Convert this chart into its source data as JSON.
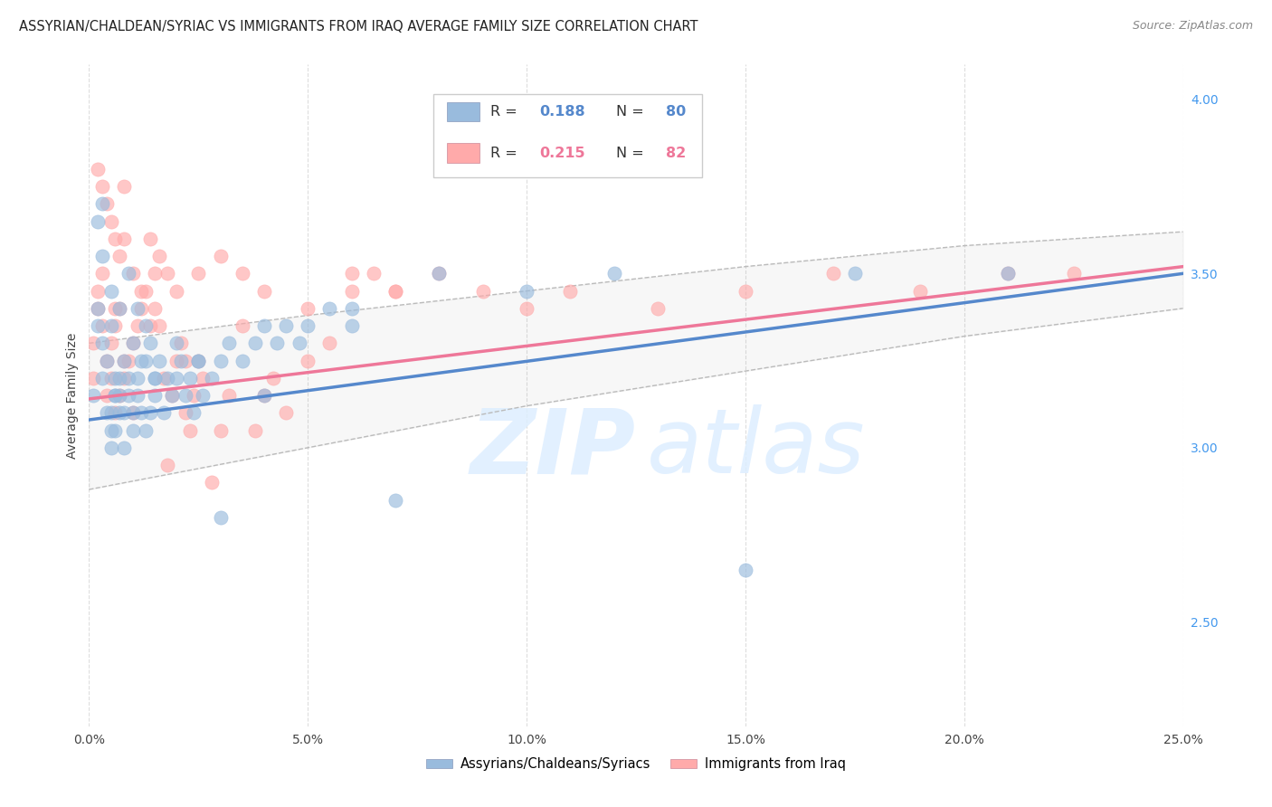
{
  "title": "ASSYRIAN/CHALDEAN/SYRIAC VS IMMIGRANTS FROM IRAQ AVERAGE FAMILY SIZE CORRELATION CHART",
  "source": "Source: ZipAtlas.com",
  "ylabel": "Average Family Size",
  "right_yticks": [
    2.5,
    3.0,
    3.5,
    4.0
  ],
  "right_yticklabels": [
    "2.50",
    "3.00",
    "3.50",
    "4.00"
  ],
  "blue_R": "0.188",
  "blue_N": "80",
  "pink_R": "0.215",
  "pink_N": "82",
  "blue_color": "#99BBDD",
  "pink_color": "#FFAAAA",
  "blue_line_color": "#5588CC",
  "pink_line_color": "#EE7799",
  "blue_label": "Assyrians/Chaldeans/Syriacs",
  "pink_label": "Immigrants from Iraq",
  "xlim": [
    0.0,
    0.25
  ],
  "ylim": [
    2.2,
    4.1
  ],
  "xticks": [
    0.0,
    0.05,
    0.1,
    0.15,
    0.2,
    0.25
  ],
  "xticklabels": [
    "0.0%",
    "5.0%",
    "10.0%",
    "15.0%",
    "20.0%",
    "25.0%"
  ],
  "grid_color": "#DDDDDD",
  "background_color": "#FFFFFF",
  "blue_line_x": [
    0.0,
    0.25
  ],
  "blue_line_y": [
    3.08,
    3.5
  ],
  "pink_line_x": [
    0.0,
    0.25
  ],
  "pink_line_y": [
    3.14,
    3.52
  ],
  "conf_x": [
    0.0,
    0.05,
    0.1,
    0.15,
    0.2,
    0.25
  ],
  "conf_upper": [
    3.3,
    3.38,
    3.45,
    3.52,
    3.58,
    3.62
  ],
  "conf_lower": [
    2.88,
    3.0,
    3.12,
    3.22,
    3.32,
    3.4
  ],
  "blue_scatter_x": [
    0.001,
    0.002,
    0.002,
    0.003,
    0.003,
    0.003,
    0.004,
    0.004,
    0.005,
    0.005,
    0.005,
    0.005,
    0.006,
    0.006,
    0.006,
    0.006,
    0.007,
    0.007,
    0.007,
    0.008,
    0.008,
    0.008,
    0.009,
    0.009,
    0.01,
    0.01,
    0.01,
    0.011,
    0.011,
    0.012,
    0.012,
    0.013,
    0.013,
    0.014,
    0.014,
    0.015,
    0.015,
    0.016,
    0.017,
    0.018,
    0.019,
    0.02,
    0.021,
    0.022,
    0.023,
    0.024,
    0.025,
    0.026,
    0.028,
    0.03,
    0.032,
    0.035,
    0.038,
    0.04,
    0.043,
    0.045,
    0.048,
    0.05,
    0.055,
    0.06,
    0.002,
    0.003,
    0.005,
    0.007,
    0.009,
    0.011,
    0.013,
    0.015,
    0.02,
    0.025,
    0.03,
    0.04,
    0.06,
    0.07,
    0.08,
    0.1,
    0.12,
    0.15,
    0.175,
    0.21
  ],
  "blue_scatter_y": [
    3.15,
    3.4,
    3.35,
    3.55,
    3.3,
    3.2,
    3.1,
    3.25,
    3.05,
    3.0,
    3.1,
    3.35,
    3.15,
    3.2,
    3.05,
    3.15,
    3.1,
    3.2,
    3.15,
    3.0,
    3.1,
    3.25,
    3.15,
    3.2,
    3.05,
    3.1,
    3.3,
    3.2,
    3.15,
    3.25,
    3.1,
    3.05,
    3.25,
    3.1,
    3.3,
    3.2,
    3.15,
    3.25,
    3.1,
    3.2,
    3.15,
    3.2,
    3.25,
    3.15,
    3.2,
    3.1,
    3.25,
    3.15,
    3.2,
    3.25,
    3.3,
    3.25,
    3.3,
    3.35,
    3.3,
    3.35,
    3.3,
    3.35,
    3.4,
    3.35,
    3.65,
    3.7,
    3.45,
    3.4,
    3.5,
    3.4,
    3.35,
    3.2,
    3.3,
    3.25,
    2.8,
    3.15,
    3.4,
    2.85,
    3.5,
    3.45,
    3.5,
    2.65,
    3.5,
    3.5
  ],
  "pink_scatter_x": [
    0.001,
    0.001,
    0.002,
    0.002,
    0.003,
    0.003,
    0.004,
    0.004,
    0.005,
    0.005,
    0.006,
    0.006,
    0.006,
    0.007,
    0.007,
    0.008,
    0.008,
    0.009,
    0.01,
    0.01,
    0.011,
    0.012,
    0.013,
    0.014,
    0.015,
    0.015,
    0.016,
    0.017,
    0.018,
    0.019,
    0.02,
    0.021,
    0.022,
    0.023,
    0.024,
    0.025,
    0.026,
    0.028,
    0.03,
    0.032,
    0.035,
    0.038,
    0.04,
    0.042,
    0.045,
    0.05,
    0.055,
    0.06,
    0.065,
    0.07,
    0.002,
    0.003,
    0.004,
    0.005,
    0.006,
    0.007,
    0.008,
    0.01,
    0.012,
    0.014,
    0.016,
    0.018,
    0.02,
    0.025,
    0.03,
    0.035,
    0.04,
    0.05,
    0.06,
    0.07,
    0.08,
    0.09,
    0.1,
    0.11,
    0.13,
    0.15,
    0.17,
    0.19,
    0.21,
    0.225,
    0.008,
    0.022
  ],
  "pink_scatter_y": [
    3.2,
    3.3,
    3.4,
    3.45,
    3.5,
    3.35,
    3.25,
    3.15,
    3.3,
    3.2,
    3.1,
    3.35,
    3.4,
    3.4,
    3.15,
    3.2,
    3.25,
    3.25,
    3.3,
    3.1,
    3.35,
    3.4,
    3.45,
    3.35,
    3.5,
    3.4,
    3.35,
    3.2,
    2.95,
    3.15,
    3.25,
    3.3,
    3.1,
    3.05,
    3.15,
    3.25,
    3.2,
    2.9,
    3.05,
    3.15,
    3.35,
    3.05,
    3.15,
    3.2,
    3.1,
    3.25,
    3.3,
    3.45,
    3.5,
    3.45,
    3.8,
    3.75,
    3.7,
    3.65,
    3.6,
    3.55,
    3.6,
    3.5,
    3.45,
    3.6,
    3.55,
    3.5,
    3.45,
    3.5,
    3.55,
    3.5,
    3.45,
    3.4,
    3.5,
    3.45,
    3.5,
    3.45,
    3.4,
    3.45,
    3.4,
    3.45,
    3.5,
    3.45,
    3.5,
    3.5,
    3.75,
    3.25
  ]
}
